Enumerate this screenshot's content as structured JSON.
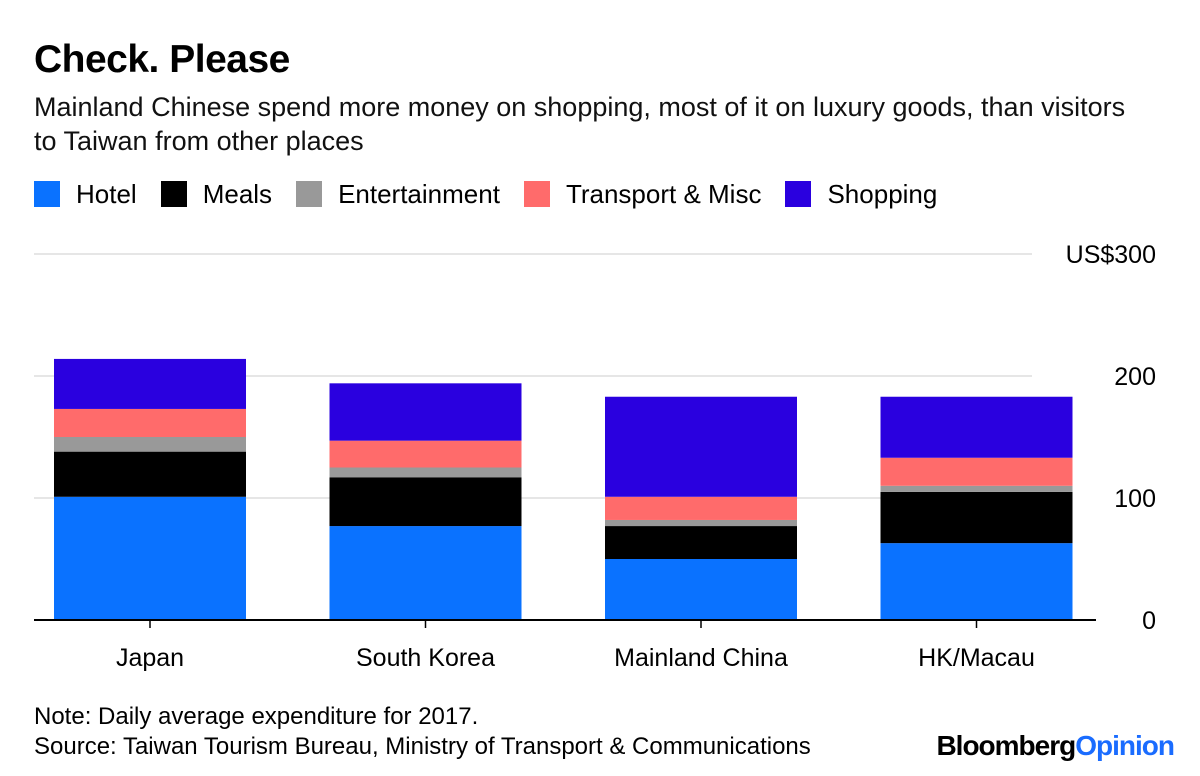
{
  "title": "Check. Please",
  "subtitle": "Mainland Chinese spend more money on shopping, most of it on luxury goods, than visitors to Taiwan from other places",
  "note": "Note: Daily average expenditure for 2017.",
  "source": "Source: Taiwan Tourism Bureau, Ministry of Transport & Communications",
  "brand": {
    "part1": "Bloomberg",
    "part2": "Opinion"
  },
  "chart_data": {
    "type": "bar",
    "stacked": true,
    "categories": [
      "Japan",
      "South Korea",
      "Mainland China",
      "HK/Macau"
    ],
    "series": [
      {
        "name": "Hotel",
        "color": "#0a72ff",
        "values": [
          101,
          77,
          50,
          63
        ]
      },
      {
        "name": "Meals",
        "color": "#000000",
        "values": [
          37,
          40,
          27,
          42
        ]
      },
      {
        "name": "Entertainment",
        "color": "#999999",
        "values": [
          12,
          8,
          5,
          5
        ]
      },
      {
        "name": "Transport & Misc",
        "color": "#ff6b6b",
        "values": [
          23,
          22,
          19,
          23
        ]
      },
      {
        "name": "Shopping",
        "color": "#2a00df",
        "values": [
          41,
          47,
          82,
          50
        ]
      }
    ],
    "ylim": [
      0,
      300
    ],
    "yticks": [
      0,
      100,
      200,
      300
    ],
    "ytick_labels": [
      "0",
      "100",
      "200",
      "US$300"
    ],
    "grid": true,
    "legend_position": "top-left"
  }
}
